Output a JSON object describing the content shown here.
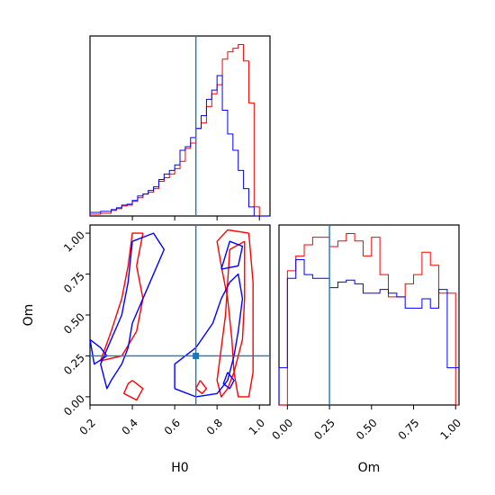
{
  "colors": {
    "series_a": "#ff0000",
    "series_b": "#0000ff",
    "truth": "#1f77b4"
  },
  "chart_data": [
    {
      "panel": "hist-H0",
      "type": "histogram",
      "xlim": [
        0.2,
        1.05
      ],
      "bin_edges": [
        0.2,
        0.25,
        0.3,
        0.325,
        0.35,
        0.375,
        0.4,
        0.425,
        0.45,
        0.475,
        0.5,
        0.525,
        0.55,
        0.575,
        0.6,
        0.625,
        0.65,
        0.675,
        0.7,
        0.725,
        0.75,
        0.775,
        0.8,
        0.825,
        0.85,
        0.875,
        0.9,
        0.925,
        0.95,
        0.975,
        1.0,
        1.05
      ],
      "series": [
        {
          "color_key": "series_a",
          "values": [
            0.01,
            0.015,
            0.03,
            0.04,
            0.055,
            0.06,
            0.08,
            0.1,
            0.12,
            0.13,
            0.15,
            0.19,
            0.21,
            0.23,
            0.26,
            0.3,
            0.37,
            0.4,
            0.48,
            0.51,
            0.6,
            0.67,
            0.72,
            0.86,
            0.9,
            0.92,
            0.94,
            0.85,
            0.62,
            0.05,
            0.0
          ]
        },
        {
          "color_key": "series_b",
          "values": [
            0.02,
            0.025,
            0.035,
            0.045,
            0.06,
            0.065,
            0.085,
            0.11,
            0.12,
            0.14,
            0.16,
            0.2,
            0.23,
            0.25,
            0.28,
            0.36,
            0.38,
            0.43,
            0.48,
            0.55,
            0.64,
            0.69,
            0.77,
            0.58,
            0.45,
            0.36,
            0.25,
            0.15,
            0.05,
            0.0,
            0.0
          ]
        }
      ],
      "truth_x": 0.7
    },
    {
      "panel": "hist-Om",
      "type": "histogram",
      "xlim": [
        -0.05,
        1.02
      ],
      "xlabel": "Om",
      "xticks": [
        "0.00",
        "0.25",
        "0.50",
        "0.75",
        "1.00"
      ],
      "bin_edges": [
        -0.05,
        0.0,
        0.05,
        0.1,
        0.15,
        0.2,
        0.25,
        0.3,
        0.35,
        0.4,
        0.45,
        0.5,
        0.55,
        0.6,
        0.65,
        0.7,
        0.75,
        0.8,
        0.85,
        0.9,
        0.95,
        1.0,
        1.02
      ],
      "series": [
        {
          "color_key": "series_a",
          "values": [
            0.0,
            0.72,
            0.8,
            0.86,
            0.9,
            0.9,
            0.85,
            0.88,
            0.92,
            0.88,
            0.8,
            0.9,
            0.7,
            0.58,
            0.58,
            0.65,
            0.7,
            0.82,
            0.75,
            0.6,
            0.6,
            0.0
          ]
        },
        {
          "color_key": "series_b",
          "values": [
            0.2,
            0.68,
            0.78,
            0.7,
            0.68,
            0.68,
            0.63,
            0.66,
            0.67,
            0.65,
            0.6,
            0.6,
            0.62,
            0.6,
            0.58,
            0.52,
            0.52,
            0.57,
            0.52,
            0.62,
            0.2,
            0.2
          ]
        }
      ],
      "truth_x": 0.25
    },
    {
      "panel": "contour-H0-Om",
      "type": "contour",
      "xlim": [
        0.2,
        1.05
      ],
      "ylim": [
        -0.05,
        1.05
      ],
      "xlabel": "H0",
      "ylabel": "Om",
      "xticks": [
        "0.2",
        "0.4",
        "0.6",
        "0.8",
        "1.0"
      ],
      "yticks": [
        "0.00",
        "0.25",
        "0.50",
        "0.75",
        "1.00"
      ],
      "truth_point": [
        0.7,
        0.25
      ],
      "contours": [
        {
          "color_key": "series_a",
          "points": [
            [
              0.95,
              1.0
            ],
            [
              0.97,
              0.7
            ],
            [
              0.97,
              0.4
            ],
            [
              0.97,
              0.15
            ],
            [
              0.95,
              0.0
            ],
            [
              0.9,
              0.0
            ],
            [
              0.88,
              0.15
            ],
            [
              0.87,
              0.35
            ],
            [
              0.85,
              0.6
            ],
            [
              0.82,
              0.8
            ],
            [
              0.8,
              0.95
            ],
            [
              0.85,
              1.02
            ],
            [
              0.95,
              1.0
            ]
          ]
        },
        {
          "color_key": "series_a",
          "points": [
            [
              0.93,
              0.95
            ],
            [
              0.93,
              0.6
            ],
            [
              0.92,
              0.35
            ],
            [
              0.88,
              0.15
            ],
            [
              0.85,
              0.05
            ],
            [
              0.82,
              0.0
            ],
            [
              0.8,
              0.1
            ],
            [
              0.82,
              0.3
            ],
            [
              0.84,
              0.5
            ],
            [
              0.85,
              0.7
            ],
            [
              0.86,
              0.9
            ],
            [
              0.93,
              0.95
            ]
          ]
        },
        {
          "color_key": "series_a",
          "points": [
            [
              0.45,
              1.0
            ],
            [
              0.42,
              0.8
            ],
            [
              0.45,
              0.6
            ],
            [
              0.42,
              0.4
            ],
            [
              0.35,
              0.25
            ],
            [
              0.25,
              0.22
            ],
            [
              0.3,
              0.4
            ],
            [
              0.35,
              0.6
            ],
            [
              0.38,
              0.8
            ],
            [
              0.4,
              1.0
            ],
            [
              0.45,
              1.0
            ]
          ]
        },
        {
          "color_key": "series_a",
          "points": [
            [
              0.4,
              0.1
            ],
            [
              0.45,
              0.05
            ],
            [
              0.42,
              -0.02
            ],
            [
              0.36,
              0.02
            ],
            [
              0.38,
              0.08
            ],
            [
              0.4,
              0.1
            ]
          ]
        },
        {
          "color_key": "series_a",
          "points": [
            [
              0.72,
              0.1
            ],
            [
              0.75,
              0.05
            ],
            [
              0.73,
              0.02
            ],
            [
              0.7,
              0.05
            ],
            [
              0.72,
              0.1
            ]
          ]
        },
        {
          "color_key": "series_b",
          "points": [
            [
              0.6,
              0.05
            ],
            [
              0.6,
              0.2
            ],
            [
              0.7,
              0.3
            ],
            [
              0.78,
              0.45
            ],
            [
              0.82,
              0.6
            ],
            [
              0.86,
              0.7
            ],
            [
              0.9,
              0.75
            ],
            [
              0.92,
              0.6
            ],
            [
              0.9,
              0.4
            ],
            [
              0.88,
              0.25
            ],
            [
              0.85,
              0.1
            ],
            [
              0.8,
              0.02
            ],
            [
              0.7,
              0.0
            ],
            [
              0.6,
              0.05
            ]
          ]
        },
        {
          "color_key": "series_b",
          "points": [
            [
              0.82,
              0.78
            ],
            [
              0.86,
              0.95
            ],
            [
              0.92,
              0.92
            ],
            [
              0.9,
              0.8
            ],
            [
              0.82,
              0.78
            ]
          ]
        },
        {
          "color_key": "series_b",
          "points": [
            [
              0.4,
              0.95
            ],
            [
              0.5,
              1.0
            ],
            [
              0.55,
              0.9
            ],
            [
              0.5,
              0.75
            ],
            [
              0.45,
              0.6
            ],
            [
              0.4,
              0.45
            ],
            [
              0.38,
              0.3
            ],
            [
              0.35,
              0.2
            ],
            [
              0.3,
              0.1
            ],
            [
              0.28,
              0.05
            ],
            [
              0.25,
              0.2
            ],
            [
              0.3,
              0.35
            ],
            [
              0.35,
              0.5
            ],
            [
              0.38,
              0.7
            ],
            [
              0.4,
              0.95
            ]
          ]
        },
        {
          "color_key": "series_b",
          "points": [
            [
              0.2,
              0.35
            ],
            [
              0.25,
              0.3
            ],
            [
              0.28,
              0.25
            ],
            [
              0.22,
              0.2
            ],
            [
              0.2,
              0.35
            ]
          ]
        },
        {
          "color_key": "series_b",
          "points": [
            [
              0.85,
              0.15
            ],
            [
              0.88,
              0.1
            ],
            [
              0.86,
              0.05
            ],
            [
              0.83,
              0.08
            ],
            [
              0.85,
              0.15
            ]
          ]
        }
      ]
    }
  ]
}
